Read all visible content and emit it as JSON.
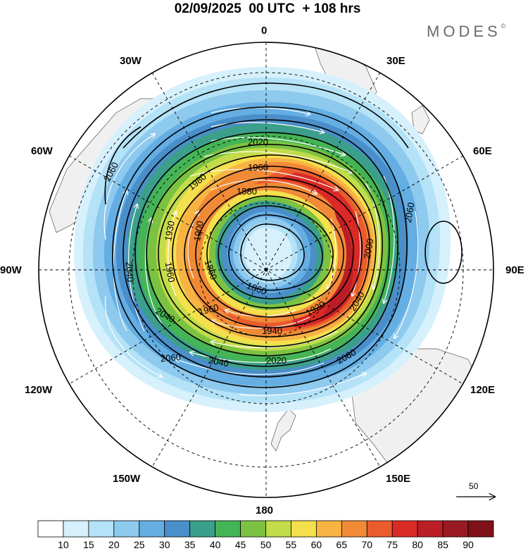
{
  "header": {
    "title": "02/09/2025  00 UTC  + 108 hrs",
    "brand": "MODES",
    "brand_mark": "©"
  },
  "map": {
    "projection": "south polar stereographic",
    "longitude_labels": [
      "0",
      "30E",
      "60E",
      "90E",
      "120E",
      "150E",
      "180",
      "150W",
      "120W",
      "90W",
      "60W",
      "30W"
    ],
    "contour_labels": [
      "2060",
      "2040",
      "2020",
      "1980",
      "1960",
      "1930",
      "1900",
      "1880",
      "1860",
      "1940",
      "1920",
      "2000"
    ],
    "reference_vector": {
      "label": "50"
    }
  },
  "colorbar": {
    "ticks": [
      "10",
      "15",
      "20",
      "25",
      "30",
      "35",
      "40",
      "45",
      "50",
      "55",
      "60",
      "65",
      "70",
      "75",
      "80",
      "85",
      "90"
    ],
    "colors": [
      "#ffffff",
      "#d6f0fc",
      "#b4e2f7",
      "#8ec9ee",
      "#64aee3",
      "#4a8fca",
      "#3c9f8b",
      "#45b456",
      "#7cc242",
      "#c2dc4a",
      "#f4e04d",
      "#f7b443",
      "#f18a37",
      "#ea5b2d",
      "#d92a27",
      "#bb1e26",
      "#991a22",
      "#7f1119"
    ]
  }
}
